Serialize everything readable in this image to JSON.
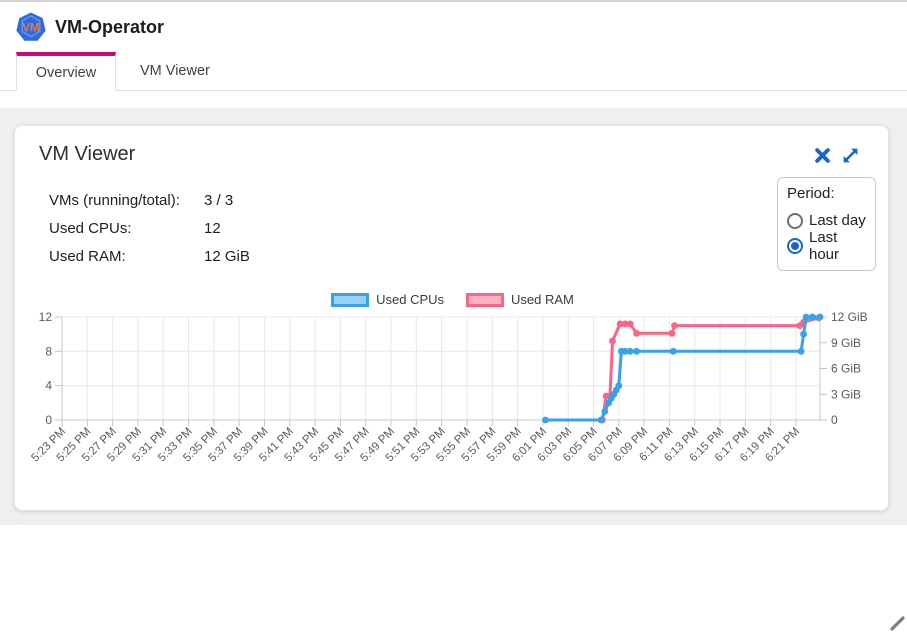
{
  "header": {
    "title": "VM-Operator",
    "logo_text": "VM"
  },
  "tabs": [
    {
      "label": "Overview",
      "active": true
    },
    {
      "label": "VM Viewer",
      "active": false
    }
  ],
  "card": {
    "title": "VM Viewer",
    "stats": [
      {
        "label": "VMs (running/total):",
        "value": "3 / 3"
      },
      {
        "label": "Used CPUs:",
        "value": "12"
      },
      {
        "label": "Used RAM:",
        "value": "12 GiB"
      }
    ],
    "period": {
      "label": "Period:",
      "options": [
        {
          "label": "Last day",
          "selected": false
        },
        {
          "label": "Last hour",
          "selected": true
        }
      ]
    }
  },
  "colors": {
    "accent_blue": "#1565d8",
    "tab_indicator": "#cc0a6e",
    "cpu_line": "#36A2EB",
    "cpu_fill": "#9AD0F5",
    "ram_line": "#FF6384",
    "ram_fill": "#FFB1C1"
  },
  "chart_data": {
    "type": "line",
    "title": "",
    "legend_position": "top",
    "grid": true,
    "legend": [
      {
        "name": "Used CPUs",
        "color": "#36A2EB",
        "fill": "#9AD0F5"
      },
      {
        "name": "Used RAM",
        "color": "#FF6384",
        "fill": "#FFB1C1"
      }
    ],
    "x_axis": {
      "unit": "time",
      "minutes_per_tick": 2,
      "tick_labels": [
        "5:23 PM",
        "5:25 PM",
        "5:27 PM",
        "5:29 PM",
        "5:31 PM",
        "5:33 PM",
        "5:35 PM",
        "5:37 PM",
        "5:39 PM",
        "5:41 PM",
        "5:43 PM",
        "5:45 PM",
        "5:47 PM",
        "5:49 PM",
        "5:51 PM",
        "5:53 PM",
        "5:55 PM",
        "5:57 PM",
        "5:59 PM",
        "6:01 PM",
        "6:03 PM",
        "6:05 PM",
        "6:07 PM",
        "6:09 PM",
        "6:11 PM",
        "6:13 PM",
        "6:15 PM",
        "6:17 PM",
        "6:19 PM",
        "6:21 PM"
      ]
    },
    "y_left": {
      "label": "",
      "tick_labels": [
        "0",
        "4",
        "8",
        "12"
      ],
      "tick_values": [
        0,
        4,
        8,
        12
      ],
      "min": 0,
      "max": 12
    },
    "y_right": {
      "label": "",
      "tick_labels": [
        "0",
        "3 GiB",
        "6 GiB",
        "9 GiB",
        "12 GiB"
      ],
      "tick_values": [
        0,
        3,
        6,
        9,
        12
      ],
      "min": 0,
      "max": 12
    },
    "points_x_unit": "minutes after 5:23 PM",
    "series": [
      {
        "name": "Used CPUs",
        "axis": "left",
        "color": "#36A2EB",
        "points": [
          [
            38.2,
            0
          ],
          [
            42.6,
            0
          ],
          [
            42.9,
            1
          ],
          [
            43.2,
            2
          ],
          [
            43.4,
            2.5
          ],
          [
            43.6,
            3
          ],
          [
            43.8,
            3.5
          ],
          [
            44.0,
            4
          ],
          [
            44.2,
            8
          ],
          [
            44.5,
            8
          ],
          [
            44.9,
            8
          ],
          [
            45.4,
            8
          ],
          [
            48.3,
            8
          ],
          [
            58.4,
            8
          ],
          [
            58.6,
            10
          ],
          [
            58.8,
            12
          ],
          [
            59.3,
            12
          ],
          [
            59.9,
            12
          ]
        ]
      },
      {
        "name": "Used RAM",
        "axis": "right",
        "color": "#FF6384",
        "points": [
          [
            42.7,
            0
          ],
          [
            43.0,
            2.8
          ],
          [
            43.3,
            2.8
          ],
          [
            43.5,
            9.2
          ],
          [
            44.1,
            11.2
          ],
          [
            44.5,
            11.2
          ],
          [
            44.9,
            11.2
          ],
          [
            45.4,
            10.1
          ],
          [
            48.2,
            10.1
          ],
          [
            48.4,
            11.0
          ],
          [
            58.3,
            11.0
          ],
          [
            58.6,
            11.4
          ],
          [
            59.8,
            11.9
          ]
        ]
      }
    ]
  }
}
